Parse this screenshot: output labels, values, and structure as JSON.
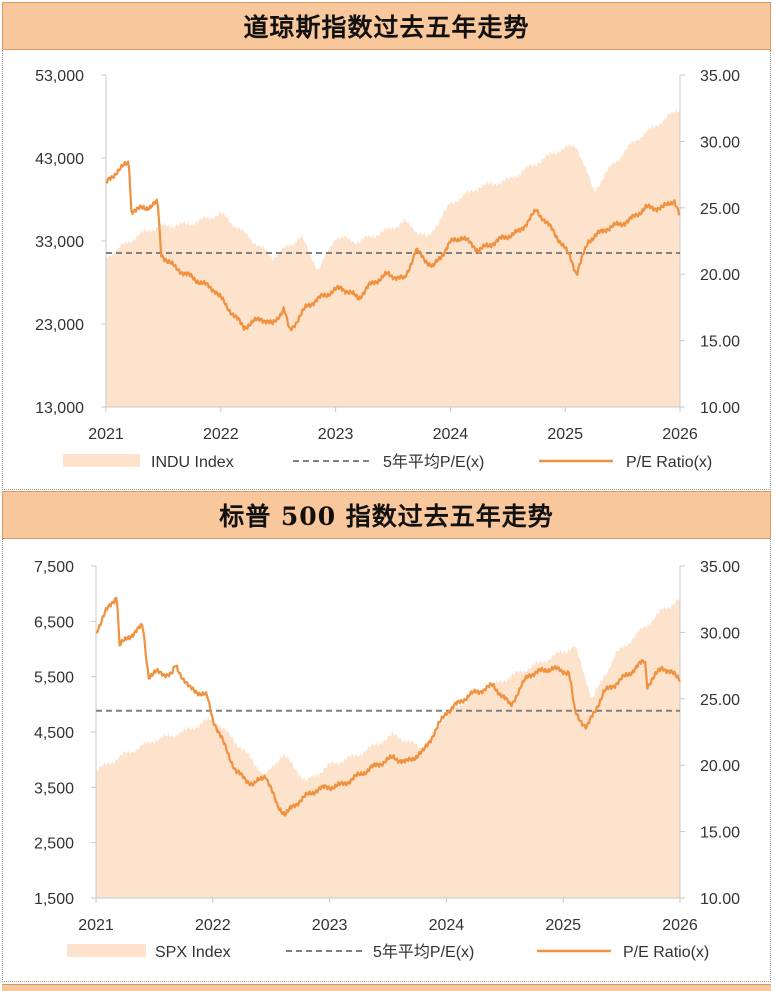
{
  "colors": {
    "banner_bg": "#f8c79c",
    "area_fill": "#fde2cc",
    "pe_line": "#f0913f",
    "avg_line": "#808080"
  },
  "banners": {
    "dow_title": "道琼斯指数过去五年走势",
    "spx_title": "标普 500 指数过去五年走势"
  },
  "chart_data": [
    {
      "type": "area",
      "title": "道琼斯指数过去五年走势",
      "x_ticks": [
        "2021",
        "2022",
        "2023",
        "2024",
        "2025",
        "2026"
      ],
      "xlim": [
        2021,
        2026
      ],
      "y_left": {
        "ticks": [
          "53,000",
          "43,000",
          "33,000",
          "23,000",
          "13,000"
        ],
        "ylim": [
          13000,
          53000
        ]
      },
      "y_right": {
        "ticks": [
          "35.00",
          "30.00",
          "25.00",
          "20.00",
          "15.00",
          "10.00"
        ],
        "ylim": [
          10,
          35
        ]
      },
      "legend": {
        "position": "bottom",
        "labels": [
          "INDU Index",
          "5年平均P/E(x)",
          "P/E Ratio(x)"
        ]
      },
      "series": [
        {
          "name": "INDU Index",
          "type": "area",
          "axis": "left",
          "x": [
            2021.0,
            2021.15,
            2021.35,
            2021.5,
            2021.7,
            2021.9,
            2022.0,
            2022.2,
            2022.45,
            2022.7,
            2022.85,
            2023.0,
            2023.2,
            2023.45,
            2023.6,
            2023.8,
            2024.0,
            2024.25,
            2024.5,
            2024.7,
            2024.95,
            2025.1,
            2025.25,
            2025.4,
            2025.6,
            2025.8,
            2026.0
          ],
          "values": [
            31000,
            32500,
            34200,
            34800,
            35000,
            35800,
            36300,
            34000,
            31000,
            33500,
            29500,
            33500,
            32900,
            34300,
            35300,
            33300,
            37500,
            39500,
            40300,
            42000,
            44000,
            44500,
            39000,
            42000,
            45000,
            47000,
            49000
          ]
        },
        {
          "name": "5年平均P/E(x)",
          "type": "hline",
          "axis": "right",
          "value": 21.6
        },
        {
          "name": "P/E Ratio(x)",
          "type": "line",
          "axis": "right",
          "x": [
            2021.0,
            2021.1,
            2021.2,
            2021.22,
            2021.35,
            2021.45,
            2021.48,
            2021.6,
            2021.8,
            2021.95,
            2022.05,
            2022.2,
            2022.35,
            2022.45,
            2022.55,
            2022.6,
            2022.75,
            2022.9,
            2023.05,
            2023.2,
            2023.3,
            2023.45,
            2023.6,
            2023.7,
            2023.85,
            2024.0,
            2024.1,
            2024.25,
            2024.45,
            2024.6,
            2024.75,
            2024.9,
            2025.05,
            2025.1,
            2025.2,
            2025.35,
            2025.55,
            2025.7,
            2025.85,
            2025.95,
            2026.0
          ],
          "values": [
            26.8,
            27.8,
            28.4,
            24.8,
            25.0,
            25.4,
            21.5,
            20.5,
            19.5,
            18.8,
            17.6,
            16.0,
            16.7,
            16.2,
            17.4,
            15.7,
            17.6,
            18.4,
            19.0,
            18.2,
            19.2,
            20.0,
            19.6,
            21.8,
            20.5,
            22.4,
            22.8,
            21.8,
            22.7,
            23.2,
            24.8,
            23.2,
            21.2,
            20.0,
            22.5,
            23.4,
            24.0,
            25.0,
            25.0,
            25.6,
            24.3
          ]
        }
      ]
    },
    {
      "type": "area",
      "title": "标普 500 指数过去五年走势",
      "x_ticks": [
        "2021",
        "2022",
        "2023",
        "2024",
        "2025",
        "2026"
      ],
      "xlim": [
        2021,
        2026
      ],
      "y_left": {
        "ticks": [
          "7,500",
          "6,500",
          "5,500",
          "4,500",
          "3,500",
          "2,500",
          "1,500"
        ],
        "ylim": [
          1500,
          7500
        ]
      },
      "y_right": {
        "ticks": [
          "35.00",
          "30.00",
          "25.00",
          "20.00",
          "15.00",
          "10.00"
        ],
        "ylim": [
          10,
          35
        ]
      },
      "legend": {
        "position": "bottom",
        "labels": [
          "SPX Index",
          "5年平均P/E(x)",
          "P/E Ratio(x)"
        ]
      },
      "series": [
        {
          "name": "SPX Index",
          "type": "area",
          "axis": "left",
          "x": [
            2021.0,
            2021.25,
            2021.5,
            2021.75,
            2022.0,
            2022.25,
            2022.45,
            2022.6,
            2022.8,
            2023.0,
            2023.25,
            2023.55,
            2023.8,
            2024.0,
            2024.25,
            2024.5,
            2024.75,
            2024.95,
            2025.1,
            2025.25,
            2025.45,
            2025.65,
            2025.85,
            2026.0
          ],
          "values": [
            3800,
            4100,
            4350,
            4500,
            4750,
            4200,
            3700,
            4100,
            3600,
            3900,
            4100,
            4450,
            4200,
            4800,
            5200,
            5450,
            5700,
            5900,
            6050,
            5100,
            5900,
            6300,
            6700,
            6900
          ]
        },
        {
          "name": "5年平均P/E(x)",
          "type": "hline",
          "axis": "right",
          "value": 24.1
        },
        {
          "name": "P/E Ratio(x)",
          "type": "line",
          "axis": "right",
          "x": [
            2021.0,
            2021.08,
            2021.18,
            2021.2,
            2021.3,
            2021.4,
            2021.45,
            2021.52,
            2021.65,
            2021.68,
            2021.8,
            2021.95,
            2022.0,
            2022.1,
            2022.2,
            2022.35,
            2022.45,
            2022.55,
            2022.62,
            2022.75,
            2022.9,
            2023.1,
            2023.2,
            2023.4,
            2023.55,
            2023.65,
            2023.8,
            2024.0,
            2024.2,
            2024.4,
            2024.55,
            2024.7,
            2024.9,
            2025.05,
            2025.1,
            2025.2,
            2025.35,
            2025.55,
            2025.7,
            2025.72,
            2025.85,
            2026.0
          ],
          "values": [
            30.0,
            31.5,
            32.8,
            29.0,
            29.8,
            30.5,
            26.7,
            27.0,
            26.8,
            27.5,
            25.8,
            25.2,
            23.5,
            21.5,
            19.5,
            18.5,
            19.3,
            17.0,
            16.3,
            17.4,
            18.2,
            18.5,
            19.0,
            20.0,
            20.6,
            20.2,
            21.0,
            24.0,
            25.3,
            26.0,
            24.5,
            26.8,
            27.3,
            27.0,
            24.0,
            22.8,
            25.5,
            26.8,
            27.9,
            26.0,
            27.4,
            26.5
          ]
        }
      ]
    }
  ]
}
